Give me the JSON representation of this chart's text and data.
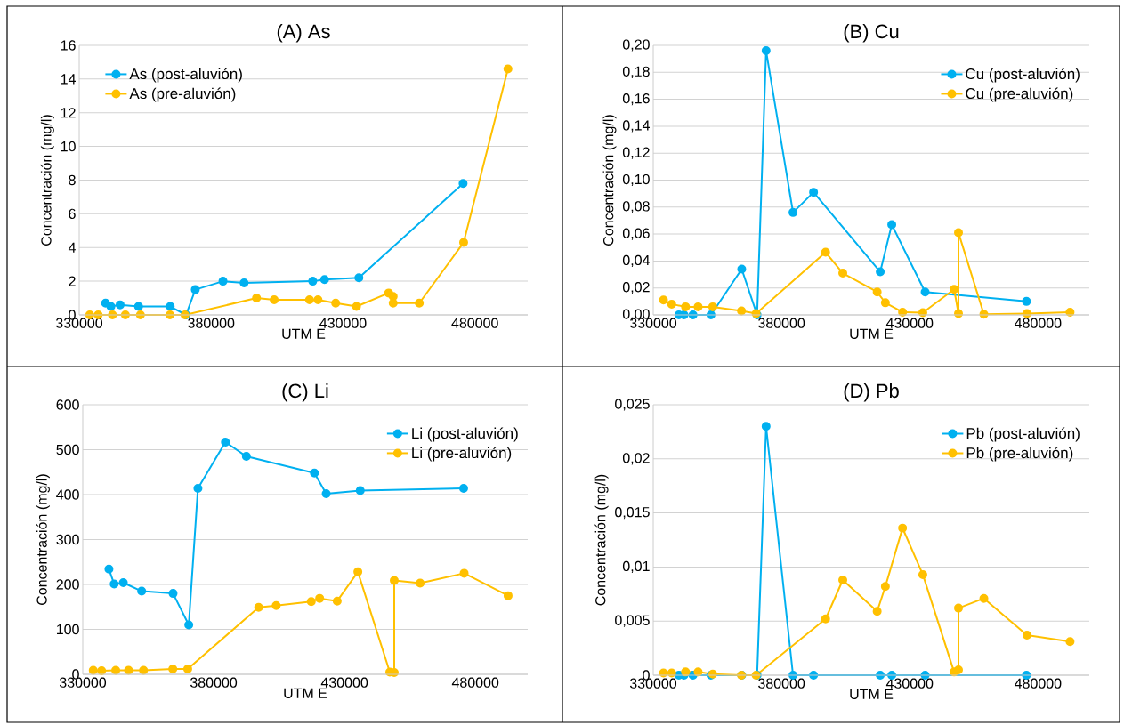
{
  "chart_data": [
    {
      "type": "line",
      "title": "(A) As",
      "xlabel": "UTM E",
      "ylabel": "Concentración (mg/l)",
      "xlim": [
        330000,
        500000
      ],
      "xticks": [
        330000,
        380000,
        430000,
        480000
      ],
      "ylim": [
        0,
        16
      ],
      "yticks": [
        0,
        2,
        4,
        6,
        8,
        10,
        12,
        14,
        16
      ],
      "grid": "y",
      "legend": "top left",
      "marker": "circle",
      "series": [
        {
          "name": "As (post-aluvión)",
          "color": "#00b0f0",
          "x": [
            340000,
            342000,
            345500,
            352500,
            364500,
            370500,
            374000,
            384500,
            392500,
            418500,
            423000,
            436000,
            475500
          ],
          "values": [
            0.7,
            0.5,
            0.6,
            0.5,
            0.5,
            0,
            1.5,
            2,
            1.9,
            2,
            2.1,
            2.2,
            7.8
          ]
        },
        {
          "name": "As (pre-aluvión)",
          "color": "#ffc000",
          "x": [
            334000,
            337200,
            342600,
            347500,
            353200,
            364400,
            370100,
            397200,
            403900,
            417300,
            420500,
            427200,
            435100,
            447300,
            449000,
            449000,
            458900,
            475700,
            492500
          ],
          "values": [
            0,
            0,
            0,
            0,
            0,
            0,
            0,
            1,
            0.9,
            0.9,
            0.9,
            0.7,
            0.5,
            1.3,
            1.1,
            0.7,
            0.7,
            4.3,
            14.6
          ]
        }
      ]
    },
    {
      "type": "line",
      "title": "(B) Cu",
      "xlabel": "UTM E",
      "ylabel": "Concentración (mg/l)",
      "xlim": [
        330000,
        500000
      ],
      "xticks": [
        330000,
        380000,
        430000,
        480000
      ],
      "ylim": [
        0,
        0.2
      ],
      "yticks": [
        {
          "value": 0,
          "label": "0,00"
        },
        {
          "value": 0.02,
          "label": "0,02"
        },
        {
          "value": 0.04,
          "label": "0,04"
        },
        {
          "value": 0.06,
          "label": "0,06"
        },
        {
          "value": 0.08,
          "label": "0,08"
        },
        {
          "value": 0.1,
          "label": "0,10"
        },
        {
          "value": 0.12,
          "label": "0,12"
        },
        {
          "value": 0.14,
          "label": "0,14"
        },
        {
          "value": 0.16,
          "label": "0,16"
        },
        {
          "value": 0.18,
          "label": "0,18"
        },
        {
          "value": 0.2,
          "label": "0,20"
        }
      ],
      "grid": "y",
      "legend": "top right",
      "marker": "circle",
      "series": [
        {
          "name": "Cu (post-aluvión)",
          "color": "#00b0f0",
          "x": [
            340000,
            342000,
            345500,
            352500,
            364500,
            370500,
            374000,
            384500,
            392500,
            418500,
            423000,
            436000,
            475500
          ],
          "values": [
            0,
            0,
            0,
            0,
            0.034,
            0,
            0.196,
            0.076,
            0.091,
            0.032,
            0.067,
            0.017,
            0.01
          ]
        },
        {
          "name": "Cu (pre-aluvión)",
          "color": "#ffc000",
          "x": [
            334000,
            337200,
            342600,
            347500,
            353200,
            364400,
            370100,
            397200,
            403900,
            417300,
            420500,
            427200,
            435100,
            447300,
            449000,
            449000,
            458900,
            475700,
            492500
          ],
          "values": [
            0.011,
            0.008,
            0.006,
            0.006,
            0.006,
            0.003,
            0.001,
            0.0465,
            0.031,
            0.017,
            0.009,
            0.002,
            0.0016,
            0.019,
            0.001,
            0.061,
            0.0005,
            0.001,
            0.002
          ]
        }
      ]
    },
    {
      "type": "line",
      "title": "(C) Li",
      "xlabel": "UTM E",
      "ylabel": "Concentración (mg/l)",
      "xlim": [
        330000,
        500000
      ],
      "xticks": [
        330000,
        380000,
        430000,
        480000
      ],
      "ylim": [
        0,
        600
      ],
      "yticks": [
        0,
        100,
        200,
        300,
        400,
        500,
        600
      ],
      "grid": "y",
      "legend": "top right",
      "marker": "circle",
      "series": [
        {
          "name": "Li (post-aluvión)",
          "color": "#00b0f0",
          "x": [
            340000,
            342000,
            345500,
            352500,
            364500,
            370500,
            374000,
            384500,
            392500,
            418500,
            423000,
            436000,
            475500
          ],
          "values": [
            234,
            201,
            204,
            185,
            180,
            110,
            414,
            517,
            485,
            448,
            402,
            409,
            414
          ]
        },
        {
          "name": "Li (pre-aluvión)",
          "color": "#ffc000",
          "x": [
            334000,
            337200,
            342600,
            347500,
            353200,
            364400,
            370100,
            397200,
            403900,
            417300,
            420500,
            427200,
            435100,
            447300,
            449000,
            449000,
            458900,
            475700,
            492500
          ],
          "values": [
            9,
            8,
            9,
            9,
            9,
            12,
            12,
            149,
            153,
            162,
            169,
            163,
            228,
            5,
            4,
            209,
            203,
            225,
            175
          ]
        }
      ]
    },
    {
      "type": "line",
      "title": "(D) Pb",
      "xlabel": "UTM E",
      "ylabel": "Concentración (mg/l)",
      "xlim": [
        330000,
        500000
      ],
      "xticks": [
        330000,
        380000,
        430000,
        480000
      ],
      "ylim": [
        0,
        0.025
      ],
      "yticks": [
        0,
        {
          "value": 0.005,
          "label": "0,005"
        },
        {
          "value": 0.01,
          "label": "0,01"
        },
        {
          "value": 0.015,
          "label": "0,015"
        },
        {
          "value": 0.02,
          "label": "0,02"
        },
        {
          "value": 0.025,
          "label": "0,025"
        }
      ],
      "grid": "y",
      "legend": "top right",
      "marker": "circle",
      "series": [
        {
          "name": "Pb (post-aluvión)",
          "color": "#00b0f0",
          "x": [
            340000,
            342000,
            345500,
            352500,
            364500,
            370500,
            374000,
            384500,
            392500,
            418500,
            423000,
            436000,
            475500
          ],
          "values": [
            0,
            0,
            0,
            0,
            0,
            0,
            0.023,
            0,
            0,
            0,
            0,
            0,
            0
          ]
        },
        {
          "name": "Pb (pre-aluvión)",
          "color": "#ffc000",
          "x": [
            334000,
            337200,
            342600,
            347500,
            353200,
            364400,
            370100,
            397200,
            403900,
            417300,
            420500,
            427200,
            435100,
            447300,
            449000,
            449000,
            458900,
            475700,
            492500
          ],
          "values": [
            0.0002,
            0.0002,
            0.0003,
            0.0003,
            0.0001,
            0,
            0,
            0.0052,
            0.0088,
            0.0059,
            0.0082,
            0.0136,
            0.0093,
            0.0003,
            0.0005,
            0.0062,
            0.0071,
            0.0037,
            0.0031
          ]
        }
      ]
    }
  ]
}
